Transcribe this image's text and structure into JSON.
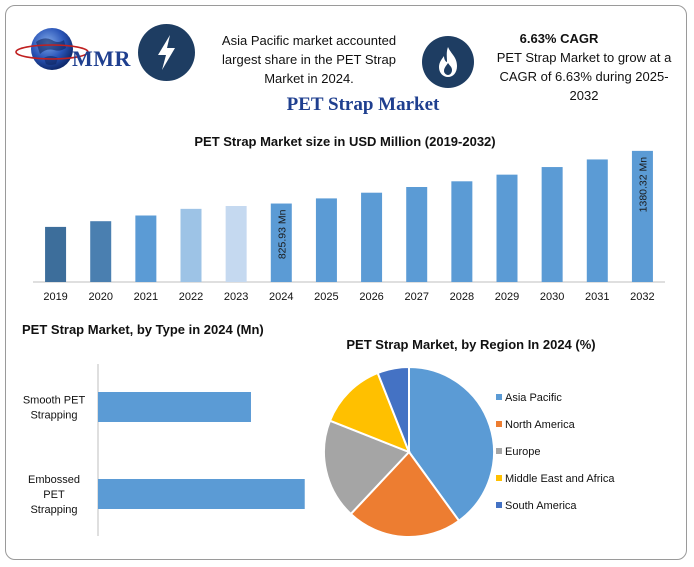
{
  "brand": {
    "logo_text": "MMR"
  },
  "info_left": {
    "text": "Asia Pacific market accounted largest share in the PET Strap Market in 2024."
  },
  "info_right": {
    "heading": "6.63% CAGR",
    "text": "PET Strap Market to grow at a CAGR of 6.63% during 2025-2032"
  },
  "icons": {
    "left": "lightning-bolt-icon",
    "right": "flame-icon"
  },
  "main_title": "PET Strap Market",
  "colors": {
    "title": "#1f3f8f",
    "icon_circle": "#1e3d62",
    "bar_default": "#5b9bd5",
    "bar_2019": "#3d6e9b",
    "bar_2020": "#4a7fb0",
    "bar_2022": "#9dc3e6",
    "bar_2023": "#c5d9f0"
  },
  "chart_data": [
    {
      "type": "bar",
      "title": "PET Strap Market size in USD Million (2019-2032)",
      "categories": [
        "2019",
        "2020",
        "2021",
        "2022",
        "2023",
        "2024",
        "2025",
        "2026",
        "2027",
        "2028",
        "2029",
        "2030",
        "2031",
        "2032"
      ],
      "values": [
        580,
        640,
        700,
        770,
        800,
        825.93,
        880,
        940,
        1000,
        1060,
        1130,
        1210,
        1290,
        1380.32
      ],
      "data_labels": {
        "2024": "825.93 Mn",
        "2032": "1380.32 Mn"
      },
      "ylim": [
        0,
        1400
      ],
      "grid": false
    },
    {
      "type": "bar",
      "orientation": "horizontal",
      "title": "PET Strap Market, by Type in 2024 (Mn)",
      "categories": [
        "Smooth PET Strapping",
        "Embossed PET Strapping"
      ],
      "values": [
        370,
        500
      ],
      "xlim": [
        0,
        520
      ]
    },
    {
      "type": "pie",
      "title": "PET Strap Market, by Region In 2024 (%)",
      "series": [
        {
          "name": "Asia Pacific",
          "value": 40,
          "color": "#5b9bd5"
        },
        {
          "name": "North America",
          "value": 22,
          "color": "#ed7d31"
        },
        {
          "name": "Europe",
          "value": 19,
          "color": "#a5a5a5"
        },
        {
          "name": "Middle East and Africa",
          "value": 13,
          "color": "#ffc000"
        },
        {
          "name": "South America",
          "value": 6,
          "color": "#4472c4"
        }
      ],
      "legend": "right"
    }
  ]
}
